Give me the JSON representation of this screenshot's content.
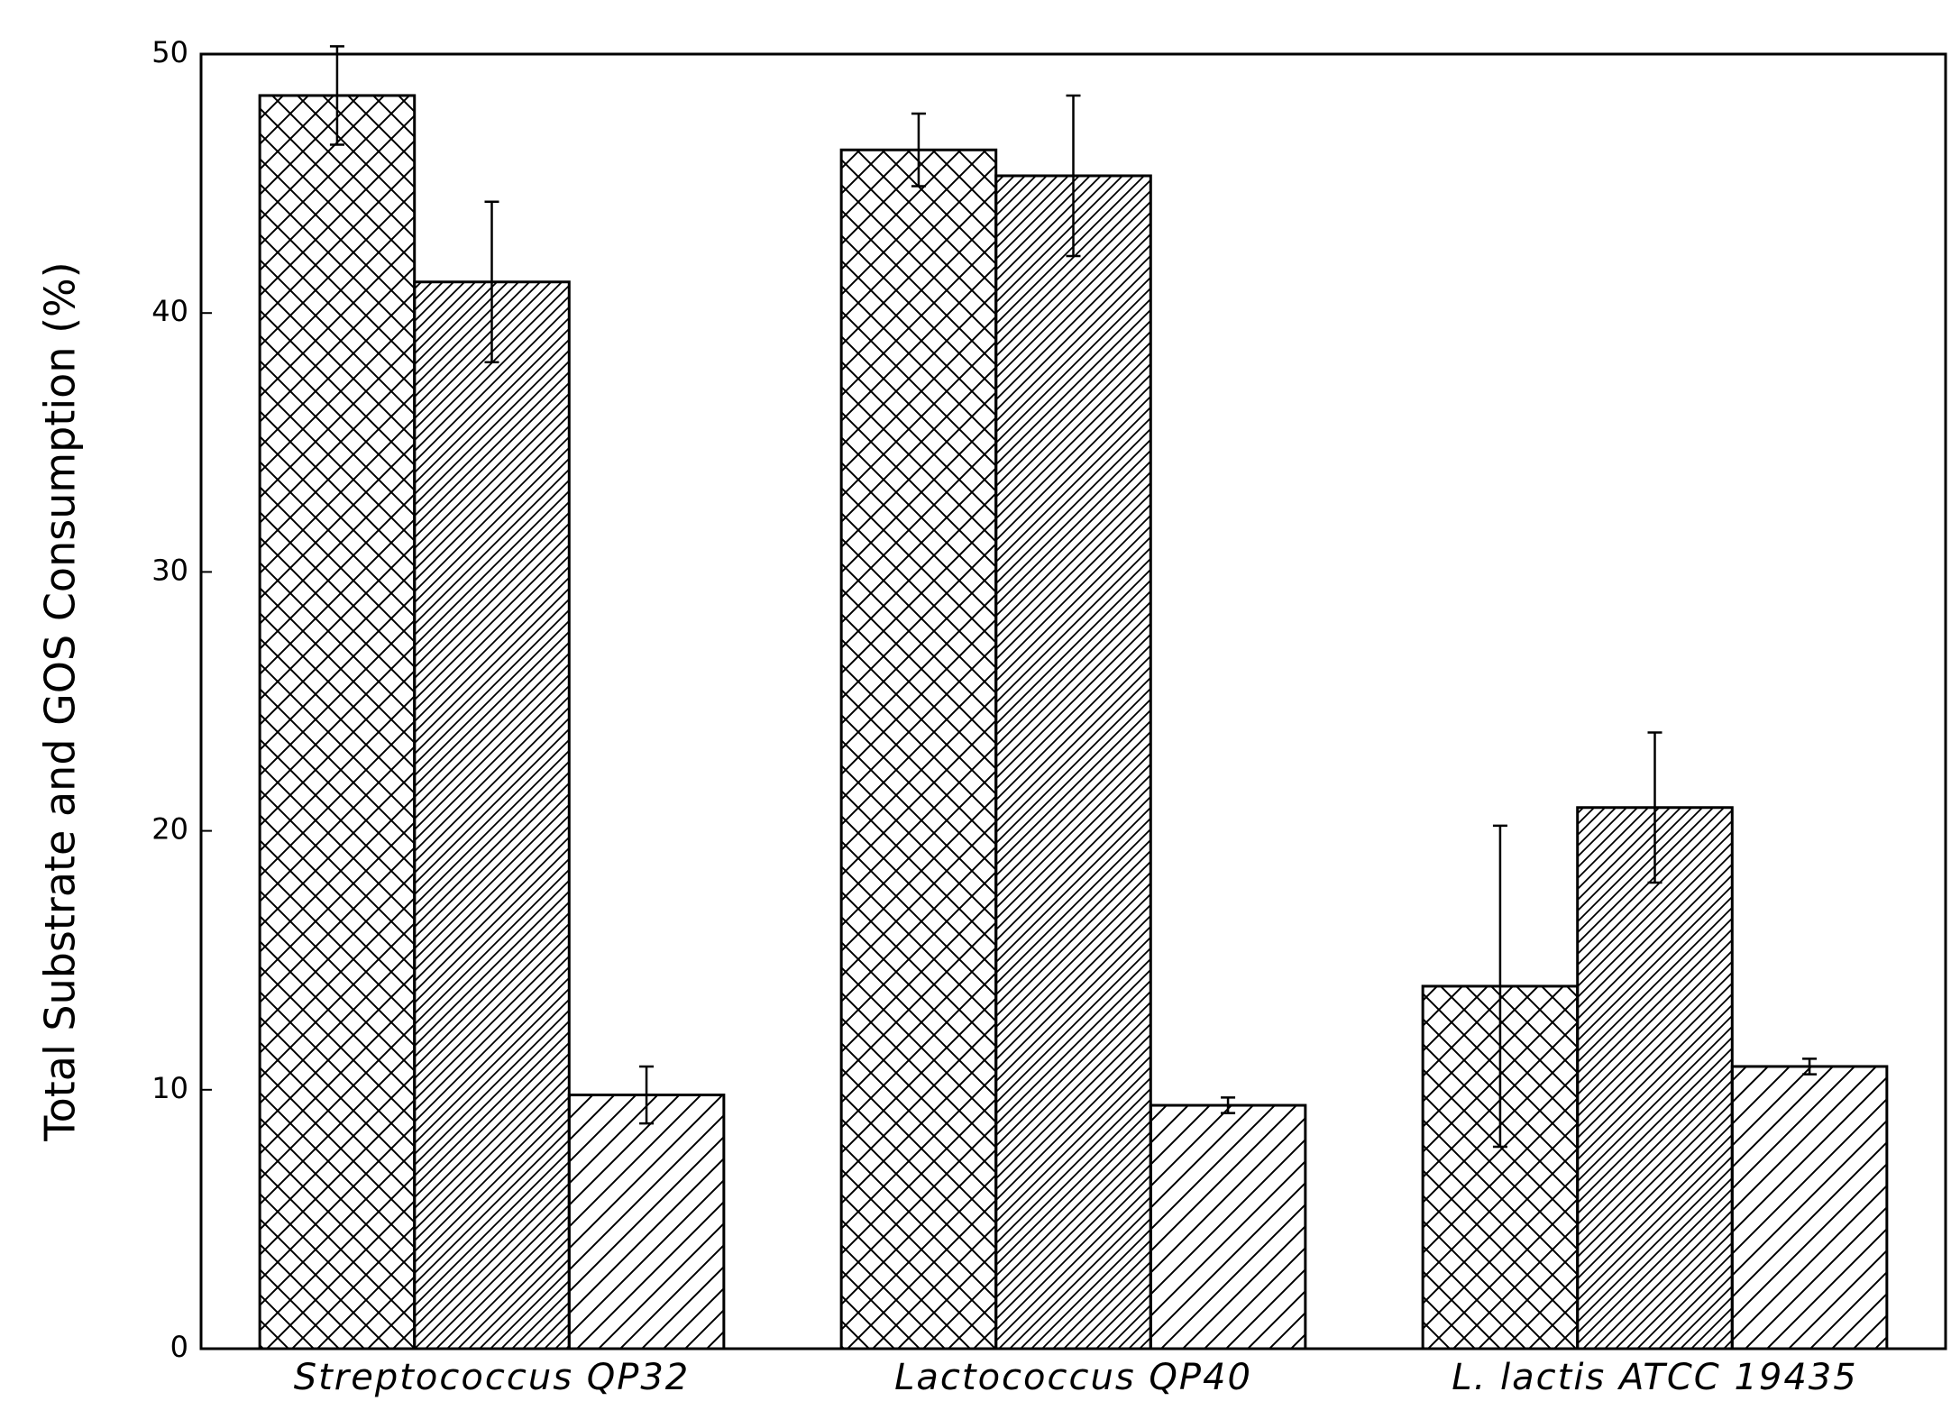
{
  "chart_data": {
    "type": "bar",
    "y_label": "Total Substrate and GOS Consumption (%)",
    "categories": [
      "Streptococcus QP32",
      "Lactococcus QP40",
      "L. lactis ATCC 19435"
    ],
    "series": [
      {
        "pattern": "crosshatch",
        "color": "#000000",
        "values": [
          48.4,
          46.3,
          14.0
        ],
        "errors": [
          1.9,
          1.4,
          6.2
        ]
      },
      {
        "pattern": "dense-diagonal",
        "color": "#000000",
        "values": [
          41.2,
          45.3,
          20.9
        ],
        "errors": [
          3.1,
          3.1,
          2.9
        ]
      },
      {
        "pattern": "diagonal",
        "color": "#000000",
        "values": [
          9.8,
          9.4,
          10.9
        ],
        "errors": [
          1.1,
          0.3,
          0.3
        ]
      }
    ],
    "ylim": [
      0,
      50
    ],
    "yticks": [
      0,
      10,
      20,
      30,
      40,
      50
    ],
    "grid": false
  }
}
